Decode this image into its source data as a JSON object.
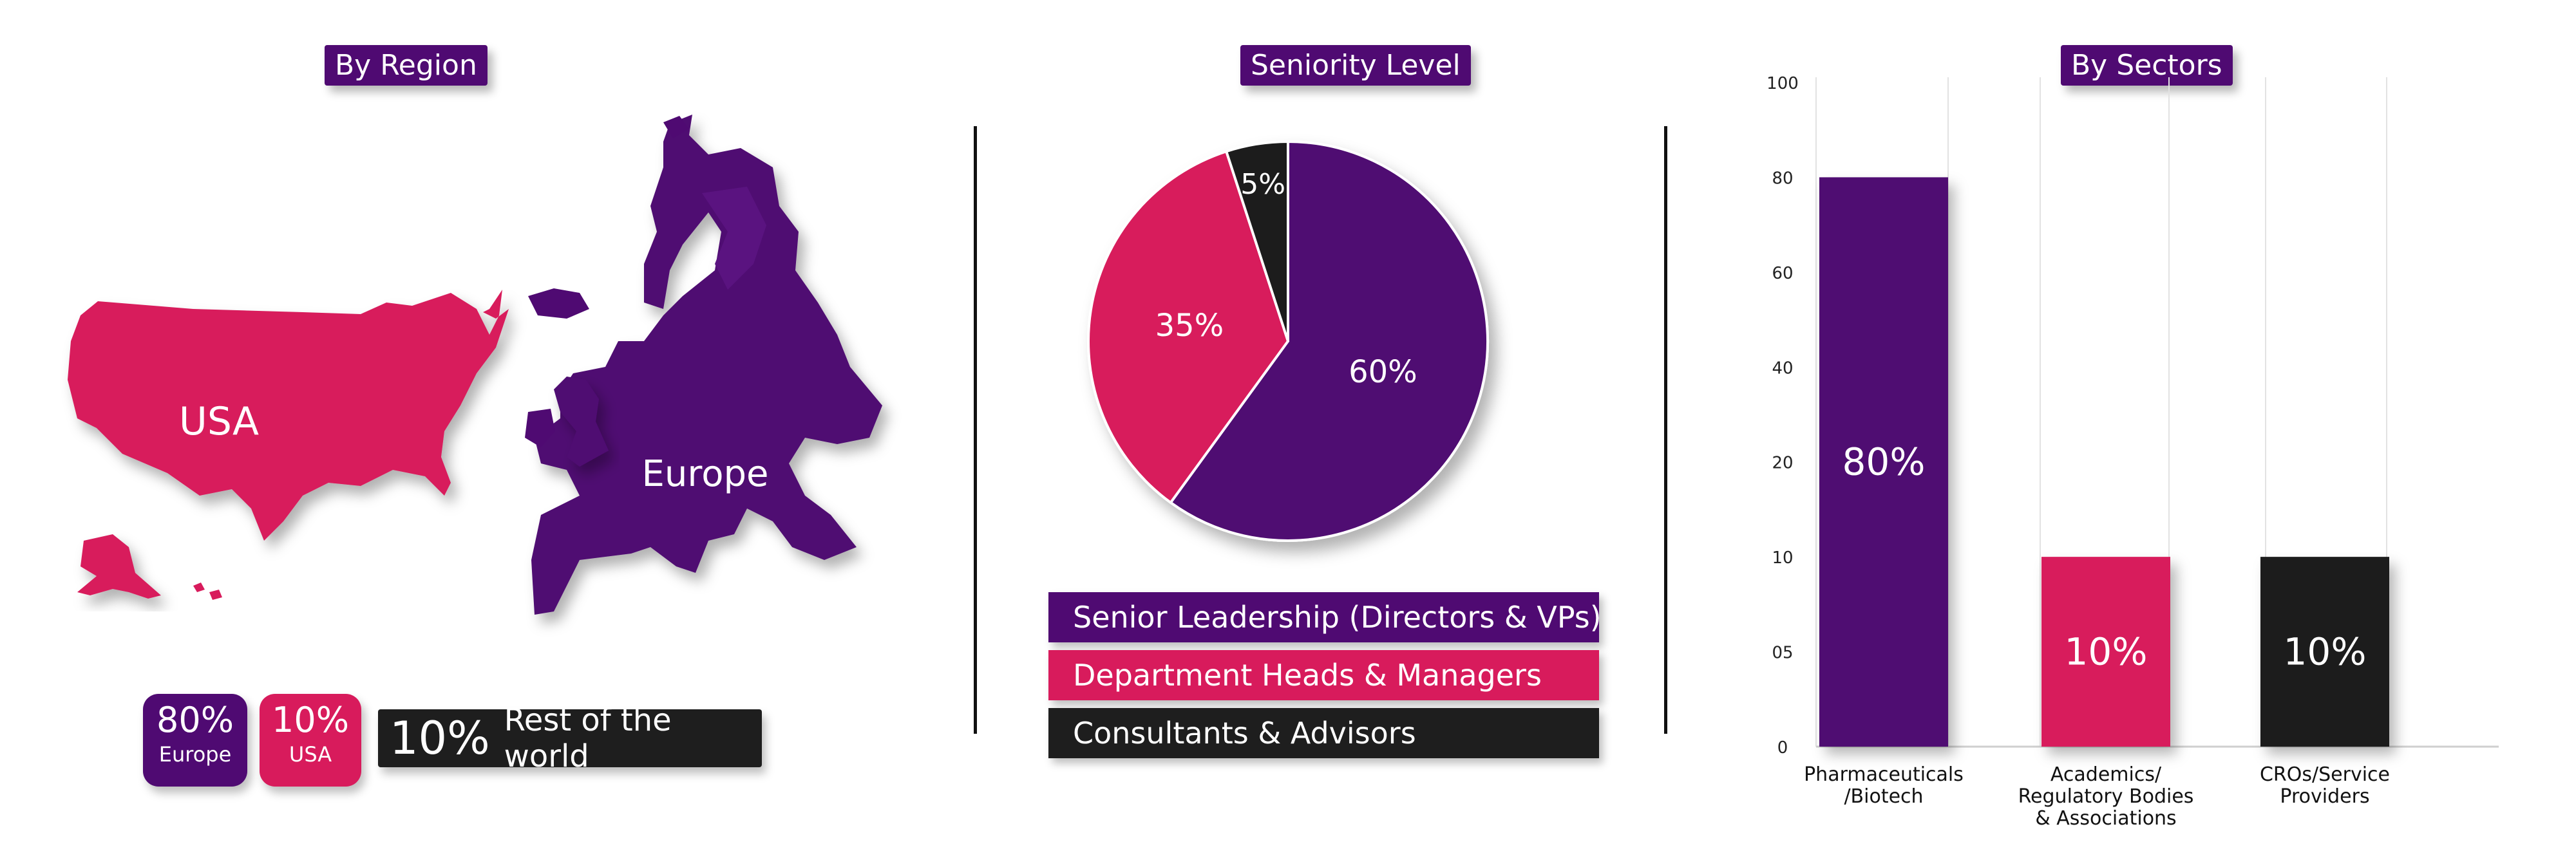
{
  "colors": {
    "purple": "#4f0a72",
    "pink": "#d81b5c",
    "black": "#1e1e1e"
  },
  "region": {
    "title": "By Region",
    "map_labels": {
      "usa": "USA",
      "europe": "Europe"
    },
    "boxes": [
      {
        "value": "80%",
        "label": "Europe"
      },
      {
        "value": "10%",
        "label": "USA"
      }
    ],
    "rest": {
      "value": "10%",
      "label": "Rest of the world"
    }
  },
  "seniority": {
    "title": "Seniority Level"
  },
  "sectors": {
    "title": "By Sectors"
  },
  "chart_data": [
    {
      "type": "pie",
      "title": "Seniority Level",
      "slices": [
        {
          "name": "Senior Leadership (Directors & VPs)",
          "value": 60,
          "label": "60%",
          "color": "#4f0a72"
        },
        {
          "name": "Department Heads & Managers",
          "value": 35,
          "label": "35%",
          "color": "#d81b5c"
        },
        {
          "name": "Consultants & Advisors",
          "value": 5,
          "label": "5%",
          "color": "#1e1e1e"
        }
      ],
      "legend_placement": "bottom"
    },
    {
      "type": "bar",
      "title": "By Sectors",
      "categories": [
        [
          "Pharmaceuticals",
          "/Biotech"
        ],
        [
          "Academics/",
          "Regulatory Bodies",
          "& Associations"
        ],
        [
          "CROs/Service",
          "Providers"
        ]
      ],
      "values": [
        80,
        10,
        10
      ],
      "value_labels": [
        "80%",
        "10%",
        "10%"
      ],
      "colors": [
        "#4f0a72",
        "#d81b5c",
        "#1e1e1e"
      ],
      "y_ticks": [
        "100",
        "80",
        "60",
        "40",
        "20",
        "10",
        "05",
        "0"
      ],
      "grid": true
    }
  ]
}
